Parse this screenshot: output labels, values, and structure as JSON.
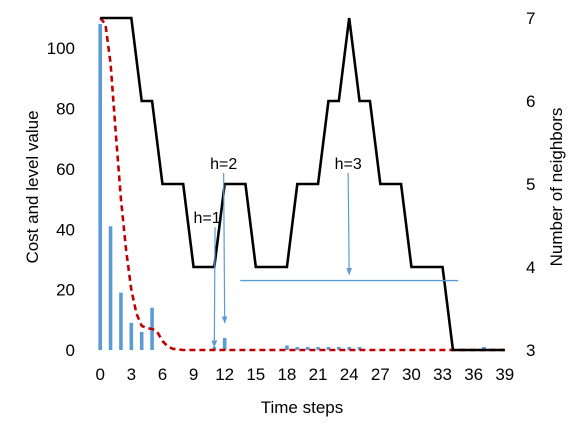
{
  "chart_data": {
    "type": "bar+line",
    "xlabel": "Time steps",
    "ylabel_left": "Cost and level value",
    "ylabel_right": "Number of neighbors",
    "x_ticks": [
      "0",
      "3",
      "6",
      "9",
      "12",
      "15",
      "18",
      "21",
      "24",
      "27",
      "30",
      "33",
      "36",
      "39"
    ],
    "x_tick_values": [
      0,
      3,
      6,
      9,
      12,
      15,
      18,
      21,
      24,
      27,
      30,
      33,
      36,
      39
    ],
    "xlim": [
      -0.5,
      39.5
    ],
    "ylim_left": [
      0,
      110
    ],
    "y_ticks_left": [
      "0",
      "20",
      "40",
      "60",
      "80",
      "100"
    ],
    "y_tick_values_left": [
      0,
      20,
      40,
      60,
      80,
      100
    ],
    "ylim_right": [
      3,
      7
    ],
    "y_ticks_right": [
      "3",
      "4",
      "5",
      "6",
      "7"
    ],
    "y_tick_values_right": [
      3,
      4,
      5,
      6,
      7
    ],
    "colors": {
      "bars": "#5b9bd5",
      "level_curve": "#c00000",
      "neighbors": "#000000",
      "annotation_line": "#5b9bd5"
    },
    "series": [
      {
        "kind": "bar",
        "axis": "left",
        "x": [
          0,
          1,
          2,
          3,
          4,
          5,
          11,
          12,
          18,
          19,
          20,
          21,
          22,
          23,
          24,
          25,
          37
        ],
        "values": [
          108,
          41,
          19,
          9,
          6,
          14,
          1,
          4,
          1.5,
          1,
          1,
          1,
          1,
          1,
          1,
          1,
          1
        ]
      },
      {
        "kind": "line",
        "style": "dashed",
        "axis": "left",
        "points": [
          [
            0,
            110
          ],
          [
            0.5,
            108
          ],
          [
            1,
            95
          ],
          [
            1.5,
            72
          ],
          [
            2,
            50
          ],
          [
            2.5,
            33
          ],
          [
            3,
            20
          ],
          [
            3.5,
            12
          ],
          [
            4,
            8
          ],
          [
            4.5,
            7.2
          ],
          [
            5,
            7
          ],
          [
            5.5,
            6
          ],
          [
            6,
            3
          ],
          [
            6.5,
            1.2
          ],
          [
            7,
            0.4
          ],
          [
            8,
            0
          ],
          [
            39,
            0
          ]
        ]
      },
      {
        "kind": "line",
        "style": "solid",
        "axis": "right",
        "points": [
          [
            0,
            7
          ],
          [
            3,
            7
          ],
          [
            4,
            6
          ],
          [
            5,
            6
          ],
          [
            6,
            5
          ],
          [
            8,
            5
          ],
          [
            9,
            4
          ],
          [
            11,
            4
          ],
          [
            12,
            5
          ],
          [
            14,
            5
          ],
          [
            15,
            4
          ],
          [
            17,
            4
          ],
          [
            18,
            4
          ],
          [
            19,
            5
          ],
          [
            21,
            5
          ],
          [
            22,
            6
          ],
          [
            23,
            6
          ],
          [
            24,
            7
          ],
          [
            25,
            6
          ],
          [
            26,
            6
          ],
          [
            27,
            5
          ],
          [
            29,
            5
          ],
          [
            30,
            4
          ],
          [
            32,
            4
          ],
          [
            33,
            4
          ],
          [
            34,
            3
          ],
          [
            39,
            3
          ]
        ]
      }
    ],
    "annotations": [
      {
        "text": "h=1",
        "x": 10.3,
        "y": 42,
        "arrow_to": [
          11,
          1
        ]
      },
      {
        "text": "h=2",
        "x": 11.9,
        "y": 60,
        "arrow_to": [
          12,
          9
        ]
      },
      {
        "text": "h=3",
        "x": 23.9,
        "y": 60,
        "arrow_to": [
          24,
          25
        ]
      }
    ],
    "h3_line": {
      "x_start": 13.5,
      "x_end": 34.5,
      "y": 23
    }
  }
}
